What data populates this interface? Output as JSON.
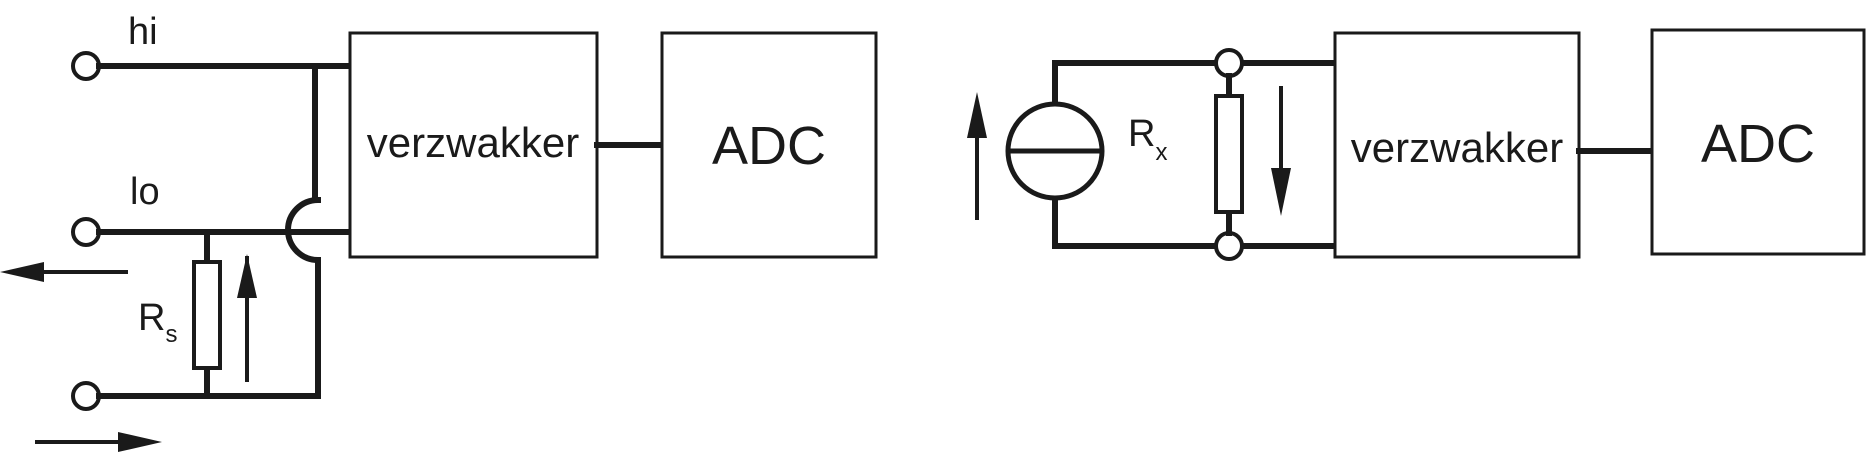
{
  "left": {
    "terminal_hi": "hi",
    "terminal_lo": "lo",
    "resistor": {
      "symbol": "R",
      "subscript": "s"
    },
    "amplifier_label": "verzwakker",
    "adc_label": "ADC"
  },
  "right": {
    "resistor": {
      "symbol": "R",
      "subscript": "x"
    },
    "amplifier_label": "verzwakker",
    "adc_label": "ADC"
  },
  "colors": {
    "ink": "#1a1a1a",
    "background": "#ffffff"
  }
}
